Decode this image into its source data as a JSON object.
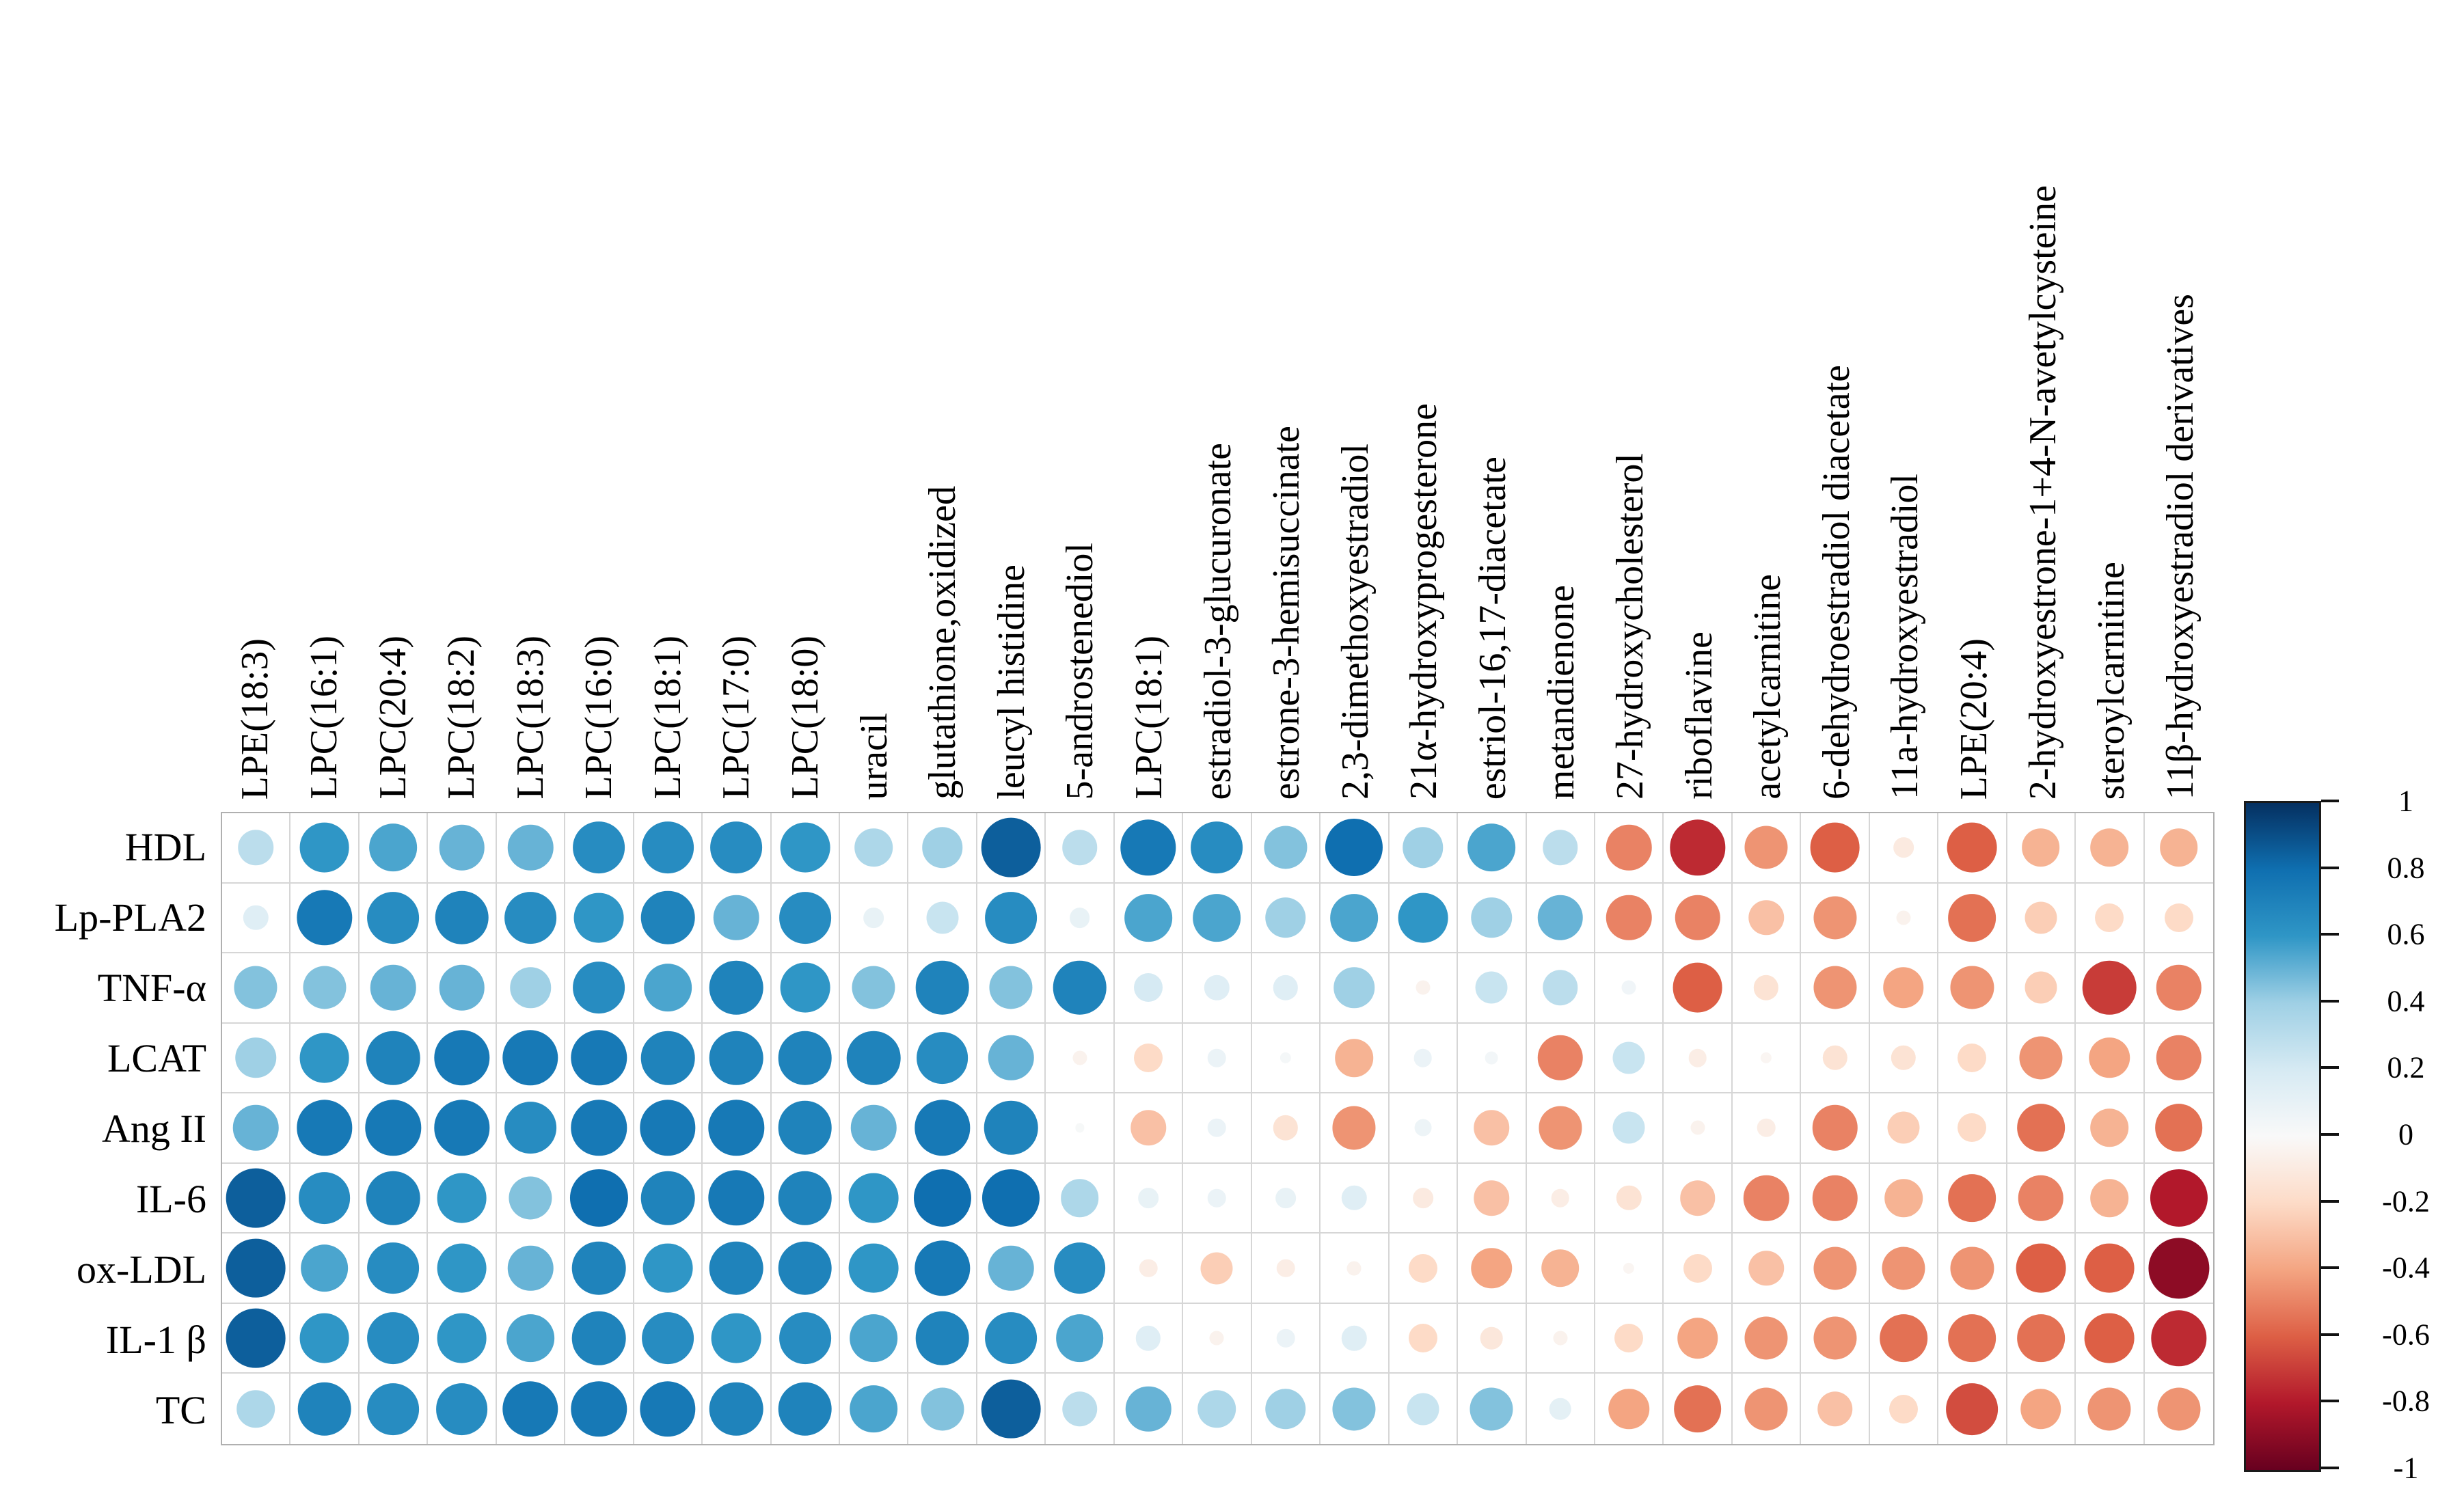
{
  "chart_data": {
    "type": "heatmap",
    "subtype": "correlation dot matrix (circle size and color encode correlation coefficient)",
    "title": "",
    "rows": [
      "HDL",
      "Lp-PLA2",
      "TNF-α",
      "LCAT",
      "Ang II",
      "IL-6",
      "ox-LDL",
      "IL-1 β",
      "TC"
    ],
    "columns": [
      "LPE(18:3)",
      "LPC(16:1)",
      "LPC(20:4)",
      "LPC(18:2)",
      "LPC(18:3)",
      "LPC(16:0)",
      "LPC(18:1)",
      "LPC(17:0)",
      "LPC(18:0)",
      "uracil",
      "glutathione,oxidized",
      "leucyl histidine",
      "5-androstenediol",
      "LPC(18:1)",
      "estradiol-3-glucuronate",
      "estrone-3-hemisuccinate",
      "2,3-dimethoxyestradiol",
      "21α-hydroxyprogesterone",
      "estriol-16,17-diacetate",
      "metandienone",
      "27-hydroxycholesterol",
      "riboflavine",
      "acetylcarnitine",
      "6-dehydroestradiol diacetate",
      "11a-hydroxyestradiol",
      "LPE(20:4)",
      "2-hydroxyestrone-1+4-N-avetylcysteine",
      "steroylcarnitine",
      "11β-hydroxyestradiol derivatives"
    ],
    "values": [
      [
        0.3,
        0.6,
        0.55,
        0.5,
        0.5,
        0.65,
        0.65,
        0.65,
        0.6,
        0.35,
        0.4,
        0.85,
        0.3,
        0.75,
        0.65,
        0.45,
        0.8,
        0.4,
        0.55,
        0.3,
        -0.5,
        -0.75,
        -0.45,
        -0.6,
        -0.1,
        -0.6,
        -0.35,
        -0.35,
        -0.35
      ],
      [
        0.15,
        0.75,
        0.65,
        0.7,
        0.65,
        0.6,
        0.7,
        0.5,
        0.65,
        0.1,
        0.25,
        0.65,
        0.1,
        0.55,
        0.55,
        0.4,
        0.55,
        0.6,
        0.4,
        0.5,
        -0.5,
        -0.5,
        -0.3,
        -0.45,
        -0.05,
        -0.55,
        -0.25,
        -0.2,
        -0.2
      ],
      [
        0.45,
        0.45,
        0.5,
        0.5,
        0.4,
        0.65,
        0.55,
        0.7,
        0.6,
        0.45,
        0.7,
        0.45,
        0.7,
        0.2,
        0.15,
        0.15,
        0.4,
        -0.05,
        0.25,
        0.3,
        0.05,
        -0.6,
        -0.15,
        -0.45,
        -0.4,
        -0.45,
        -0.25,
        -0.7,
        -0.5
      ],
      [
        0.4,
        0.6,
        0.7,
        0.75,
        0.75,
        0.75,
        0.7,
        0.7,
        0.7,
        0.7,
        0.65,
        0.5,
        -0.05,
        -0.2,
        0.08,
        0.03,
        -0.35,
        0.08,
        0.04,
        -0.5,
        0.25,
        -0.08,
        -0.03,
        -0.15,
        -0.15,
        -0.2,
        -0.45,
        -0.4,
        -0.5
      ],
      [
        0.5,
        0.75,
        0.75,
        0.75,
        0.65,
        0.75,
        0.75,
        0.75,
        0.7,
        0.5,
        0.75,
        0.7,
        0.02,
        -0.3,
        0.08,
        -0.15,
        -0.45,
        0.07,
        -0.3,
        -0.45,
        0.25,
        -0.05,
        -0.08,
        -0.5,
        -0.25,
        -0.2,
        -0.55,
        -0.35,
        -0.55
      ],
      [
        0.85,
        0.65,
        0.7,
        0.6,
        0.45,
        0.8,
        0.7,
        0.75,
        0.7,
        0.6,
        0.8,
        0.8,
        0.35,
        0.1,
        0.08,
        0.1,
        0.15,
        -0.1,
        -0.3,
        -0.08,
        -0.15,
        -0.3,
        -0.5,
        -0.5,
        -0.35,
        -0.55,
        -0.5,
        -0.35,
        -0.8
      ],
      [
        0.85,
        0.55,
        0.65,
        0.6,
        0.5,
        0.7,
        0.6,
        0.7,
        0.7,
        0.6,
        0.75,
        0.5,
        0.65,
        -0.08,
        -0.25,
        -0.08,
        -0.05,
        -0.2,
        -0.4,
        -0.35,
        -0.03,
        -0.2,
        -0.3,
        -0.45,
        -0.45,
        -0.45,
        -0.6,
        -0.6,
        -0.9
      ],
      [
        0.85,
        0.6,
        0.65,
        0.6,
        0.55,
        0.7,
        0.65,
        0.6,
        0.65,
        0.55,
        0.7,
        0.65,
        0.55,
        0.15,
        -0.05,
        0.08,
        0.15,
        -0.2,
        -0.12,
        -0.05,
        -0.2,
        -0.4,
        -0.45,
        -0.45,
        -0.55,
        -0.55,
        -0.55,
        -0.6,
        -0.75
      ],
      [
        0.35,
        0.7,
        0.65,
        0.65,
        0.75,
        0.75,
        0.75,
        0.7,
        0.7,
        0.55,
        0.45,
        0.85,
        0.3,
        0.5,
        0.35,
        0.4,
        0.45,
        0.25,
        0.45,
        0.12,
        -0.4,
        -0.55,
        -0.45,
        -0.3,
        -0.2,
        -0.65,
        -0.4,
        -0.45,
        -0.45
      ]
    ],
    "value_range": [
      -1,
      1
    ],
    "colorbar_ticks": [
      "1",
      "0.8",
      "0.6",
      "0.4",
      "0.2",
      "0",
      "-0.2",
      "-0.4",
      "-0.6",
      "-0.8",
      "-1"
    ],
    "palette_low_to_high": [
      "#67001f",
      "#b2182b",
      "#dd5f45",
      "#f4a582",
      "#fddbc7",
      "#f9f9f9",
      "#d6eaf3",
      "#9fd0e5",
      "#2f96c6",
      "#0f6fb0",
      "#053061"
    ],
    "legend_position": "right",
    "grid": true,
    "dot_scaling": "diameter proportional to sqrt(|r|)"
  }
}
